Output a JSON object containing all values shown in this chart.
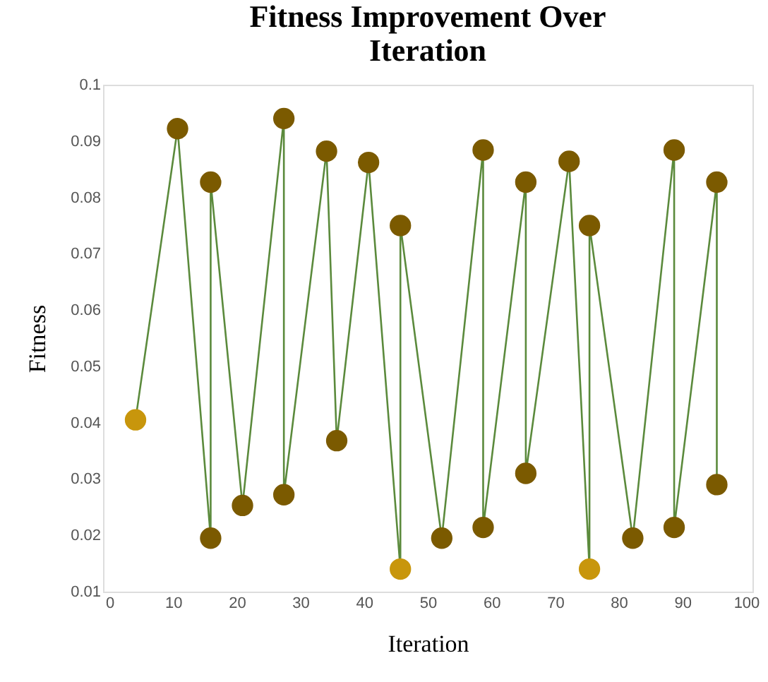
{
  "chart_data": {
    "type": "line",
    "title": "Fitness Improvement Over\nIteration",
    "xlabel": "Iteration",
    "ylabel": "Fitness",
    "x": [
      4.1,
      10.7,
      15.9,
      15.9,
      20.9,
      27.4,
      27.4,
      34.1,
      35.7,
      40.7,
      45.7,
      45.7,
      52.2,
      58.7,
      58.7,
      65.4,
      65.4,
      72.2,
      75.4,
      75.4,
      82.2,
      88.7,
      88.7,
      95.4,
      95.4
    ],
    "series": [
      {
        "color": "#5b8a3c",
        "values": [
          0.0405,
          0.0922,
          0.0195,
          0.0827,
          0.0253,
          0.094,
          0.0272,
          0.0882,
          0.0368,
          0.0862,
          0.014,
          0.075,
          0.0195,
          0.0884,
          0.0214,
          0.0827,
          0.031,
          0.0864,
          0.014,
          0.075,
          0.0195,
          0.0884,
          0.0214,
          0.0827,
          0.029
        ],
        "colors": [
          "#c8960c",
          "#7b5a00",
          "#7b5a00",
          "#7b5a00",
          "#7b5a00",
          "#7b5a00",
          "#7b5a00",
          "#7b5a00",
          "#7b5a00",
          "#7b5a00",
          "#c8960c",
          "#7b5a00",
          "#7b5a00",
          "#7b5a00",
          "#7b5a00",
          "#7b5a00",
          "#7b5a00",
          "#7b5a00",
          "#c8960c",
          "#7b5a00",
          "#7b5a00",
          "#7b5a00",
          "#7b5a00",
          "#7b5a00",
          "#7b5a00"
        ]
      }
    ],
    "xlim": [
      -1,
      101
    ],
    "xticks": [
      0,
      10,
      20,
      30,
      40,
      50,
      60,
      70,
      80,
      90,
      100
    ],
    "ylim": [
      0.01,
      0.1
    ],
    "yticks": [
      0.01,
      0.02,
      0.03,
      0.04,
      0.05,
      0.06,
      0.07,
      0.08,
      0.09,
      0.1
    ],
    "marker": "circle",
    "line_style": "solid"
  }
}
